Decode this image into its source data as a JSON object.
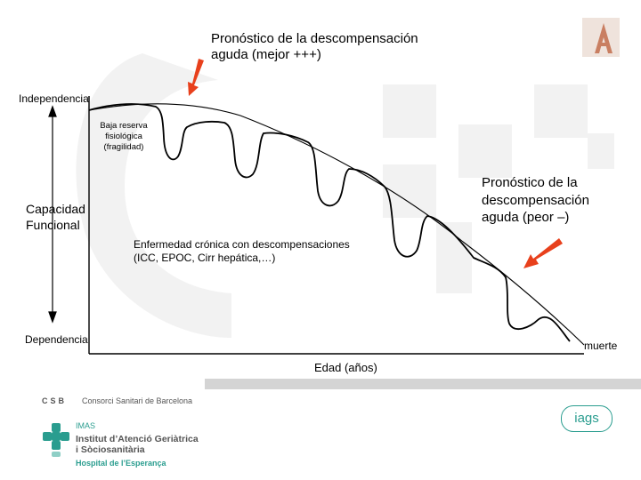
{
  "title_top": "Pronóstico de la descompensación\naguda (mejor +++)",
  "title_right": "Pronóstico de la\ndescompensación\naguda (peor –)",
  "axis": {
    "top": "Independencia",
    "middle": "Capacidad\nFuncional",
    "bottom": "Dependencia",
    "x": "Edad (años)"
  },
  "labels": {
    "reserve": "Baja reserva\nfisiológica\n(fragilidad)",
    "chronic": "Enfermedad crónica con descompensaciones\n(ICC, EPOC, Cirr hepática,…)",
    "death": "muerte"
  },
  "footer": {
    "csb_abbr": "CSB",
    "csb_name": "Consorci Sanitari de Barcelona",
    "imas": "IMAS",
    "institute": "Institut d’Atenció Geriàtrica\ni Sòciosanitària",
    "hospital": "Hospital de l’Esperança",
    "logo_right": "iags"
  },
  "colors": {
    "arrow": "#e8401c",
    "accent": "#2a9d8f",
    "cross": "#2a9d8f"
  }
}
